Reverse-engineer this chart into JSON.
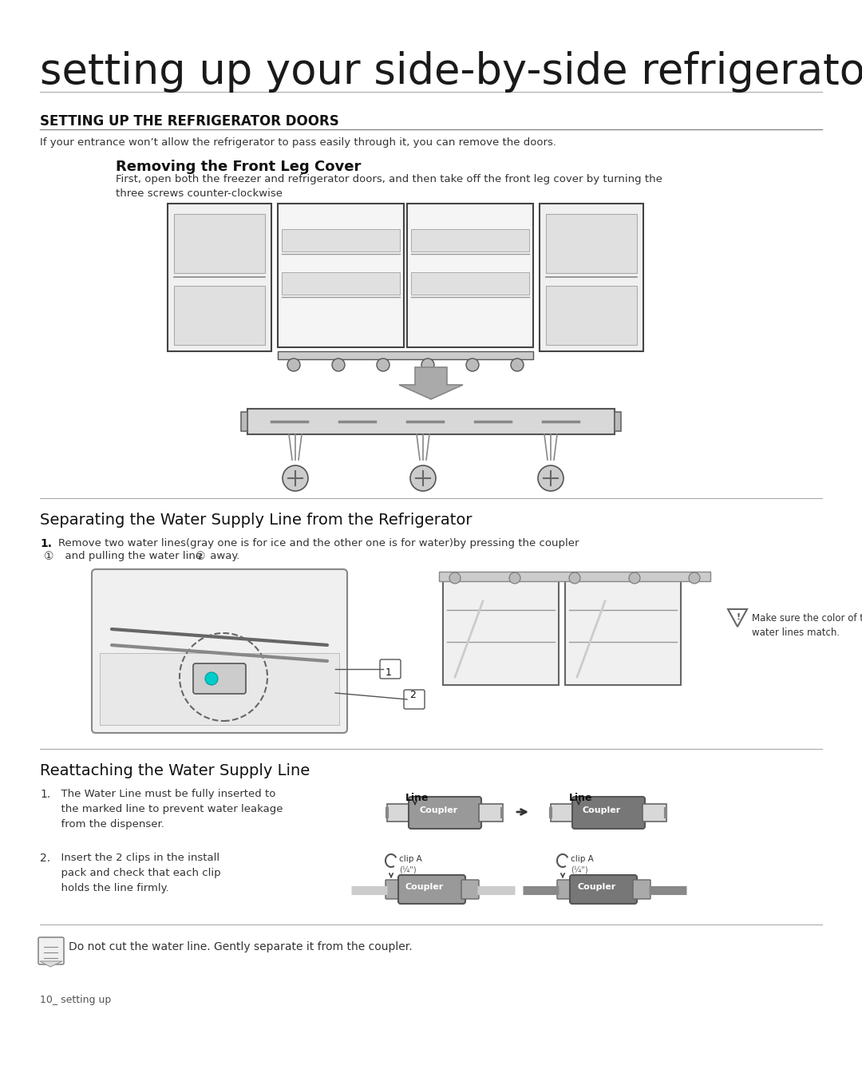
{
  "bg_color": "#ffffff",
  "title_main": "setting up your side-by-side refrigerator",
  "section1_title": "SETTING UP THE REFRIGERATOR DOORS",
  "section1_intro": "If your entrance won’t allow the refrigerator to pass easily through it, you can remove the doors.",
  "sub1_title": "Removing the Front Leg Cover",
  "sub1_body": "First, open both the freezer and refrigerator doors, and then take off the front leg cover by turning the\nthree screws counter-clockwise",
  "sub2_title": "Separating the Water Supply Line from the Refrigerator",
  "step1_bold": "1.",
  "step1_text1": "  Remove two water lines(gray one is for ice and the other one is for water)by pressing the coupler",
  "step1_text2": "    and pulling the water line      away.",
  "sub3_title": "Reattaching the Water Supply Line",
  "reattach_step1_num": "1.",
  "reattach_step1": "  The Water Line must be fully inserted to\n  the marked line to prevent water leakage\n  from the dispenser.",
  "reattach_step2_num": "2.",
  "reattach_step2": "  Insert the 2 clips in the install\n  pack and check that each clip\n  holds the line firmly.",
  "note_text": "Do not cut the water line. Gently separate it from the coupler.",
  "warning_text": "Make sure the color of the\nwater lines match.",
  "footer_text": "10_ setting up",
  "title_font_size": 38,
  "section_font_size": 12,
  "sub_font_size": 13,
  "body_font_size": 10
}
